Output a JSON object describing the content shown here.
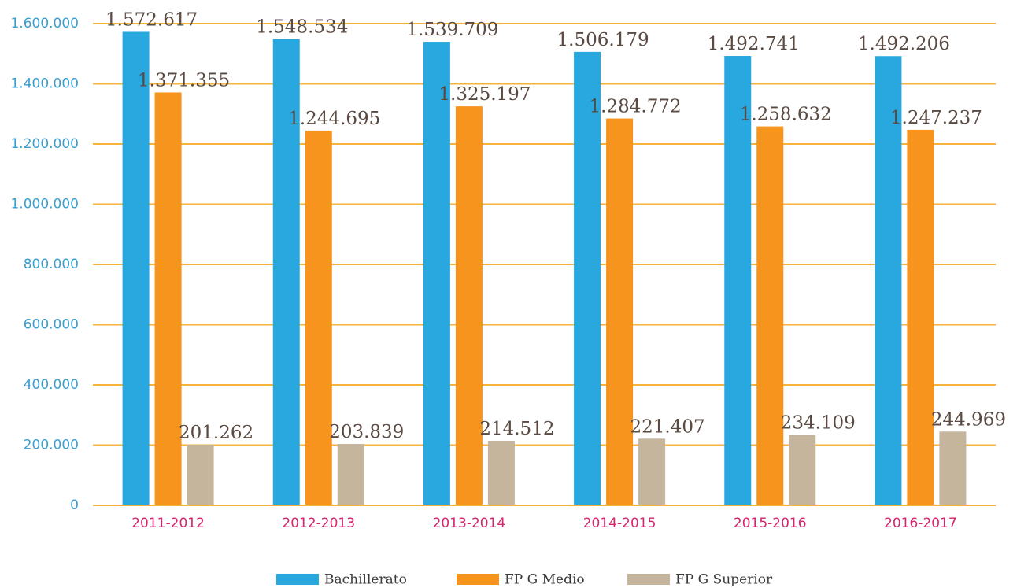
{
  "chart_data": {
    "type": "bar",
    "categories": [
      "2011-2012",
      "2012-2013",
      "2013-2014",
      "2014-2015",
      "2015-2016",
      "2016-2017"
    ],
    "series": [
      {
        "name": "Bachillerato",
        "color": "#29a8e0",
        "values": [
          1572617,
          1548534,
          1539709,
          1506179,
          1492741,
          1492206
        ],
        "value_labels": [
          "1.572.617",
          "1.548.534",
          "1.539.709",
          "1.506.179",
          "1.492.741",
          "1.492.206"
        ]
      },
      {
        "name": "FP G Medio",
        "color": "#f7941d",
        "values": [
          1371355,
          1244695,
          1325197,
          1284772,
          1258632,
          1247237
        ],
        "value_labels": [
          "1.371.355",
          "1.244.695",
          "1.325.197",
          "1.284.772",
          "1.258.632",
          "1.247.237"
        ]
      },
      {
        "name": "FP G Superior",
        "color": "#c4b59c",
        "values": [
          201262,
          203839,
          214512,
          221407,
          234109,
          244969
        ],
        "value_labels": [
          "201.262",
          "203.839",
          "214.512",
          "221.407",
          "234.109",
          "244.969"
        ]
      }
    ],
    "ylim": [
      0,
      1600000
    ],
    "yticks": [
      0,
      {
        "value": 200000,
        "label": "200.000"
      },
      {
        "value": 400000,
        "label": "400.000"
      },
      {
        "value": 600000,
        "label": "600.000"
      },
      {
        "value": 800000,
        "label": "800.000"
      },
      {
        "value": 1000000,
        "label": "1.000.000"
      },
      {
        "value": 1200000,
        "label": "1.200.000"
      },
      {
        "value": 1400000,
        "label": "1.400.000"
      },
      {
        "value": 1600000,
        "label": "1.600.000"
      }
    ],
    "grid": true,
    "grid_color": "#f7b23b",
    "legend": "bottom"
  }
}
